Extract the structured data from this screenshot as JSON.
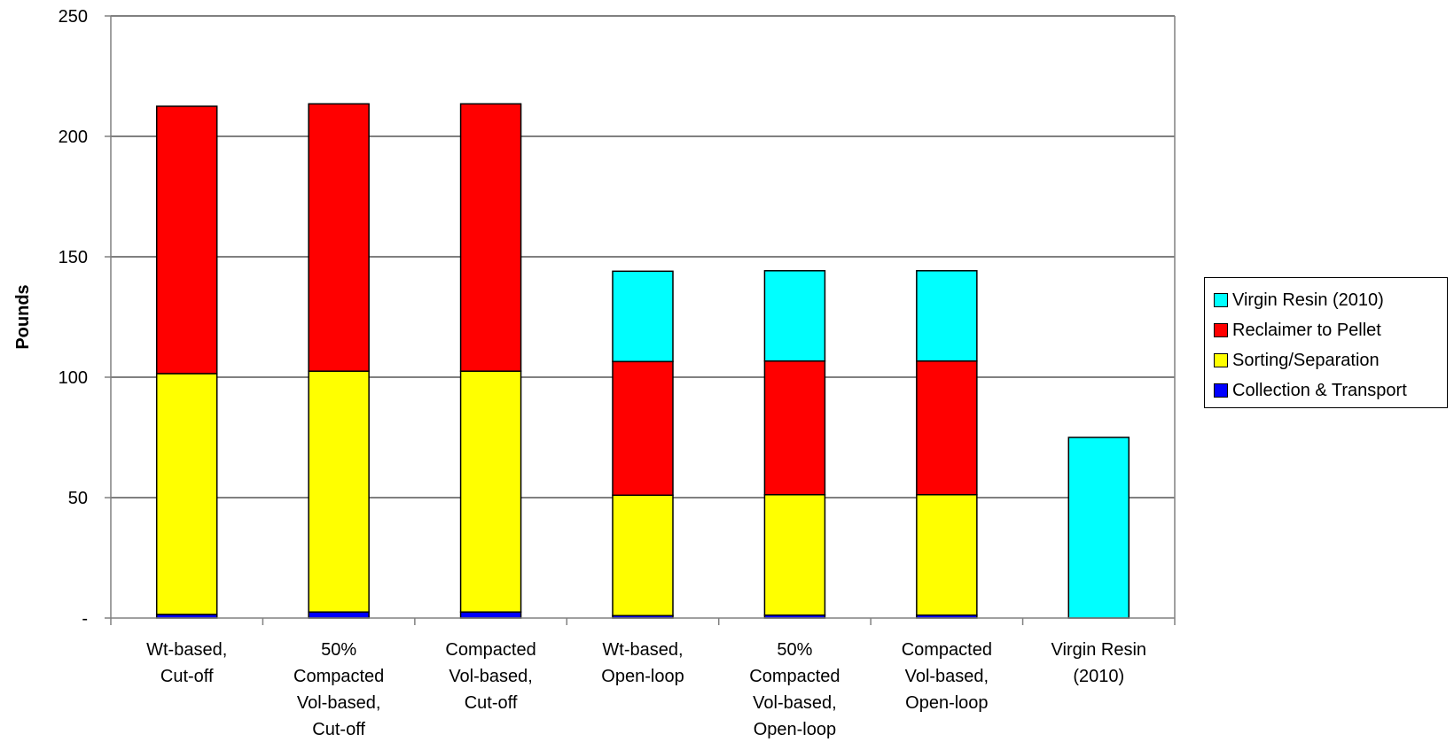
{
  "chart_data": {
    "type": "bar",
    "stacked": true,
    "title": "",
    "xlabel": "",
    "ylabel": "Pounds",
    "ylim": [
      0,
      250
    ],
    "yticks": [
      0,
      50,
      100,
      150,
      200,
      250
    ],
    "ytick_labels": [
      "-",
      "50",
      "100",
      "150",
      "200",
      "250"
    ],
    "grid": true,
    "legend_position": "right",
    "categories": [
      [
        "Wt-based,",
        "Cut-off"
      ],
      [
        "50%",
        "Compacted",
        "Vol-based,",
        "Cut-off"
      ],
      [
        "Compacted",
        "Vol-based,",
        "Cut-off"
      ],
      [
        "Wt-based,",
        "Open-loop"
      ],
      [
        "50%",
        "Compacted",
        "Vol-based,",
        "Open-loop"
      ],
      [
        "Compacted",
        "Vol-based,",
        "Open-loop"
      ],
      [
        "Virgin Resin",
        "(2010)"
      ]
    ],
    "series": [
      {
        "name": "Collection & Transport",
        "color": "#0000ff",
        "values": [
          1.5,
          2.5,
          2.5,
          1,
          1.2,
          1.2,
          0
        ]
      },
      {
        "name": "Sorting/Separation",
        "color": "#ffff00",
        "values": [
          100,
          100,
          100,
          50,
          50,
          50,
          0
        ]
      },
      {
        "name": "Reclaimer to Pellet",
        "color": "#ff0000",
        "values": [
          111,
          111,
          111,
          55.5,
          55.5,
          55.5,
          0
        ]
      },
      {
        "name": "Virgin Resin (2010)",
        "color": "#00ffff",
        "values": [
          0,
          0,
          0,
          37.5,
          37.5,
          37.5,
          75
        ]
      }
    ]
  }
}
